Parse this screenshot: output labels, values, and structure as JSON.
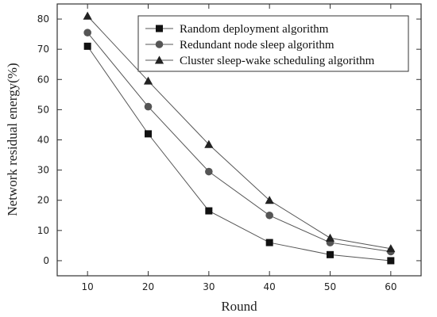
{
  "chart_data": {
    "type": "line",
    "title": "",
    "xlabel": "Round",
    "ylabel": "Network residual energy(%)",
    "x": [
      10,
      20,
      30,
      40,
      50,
      60
    ],
    "xlim": [
      5,
      65
    ],
    "ylim": [
      -5,
      85
    ],
    "xticks": [
      10,
      20,
      30,
      40,
      50,
      60
    ],
    "yticks": [
      0,
      10,
      20,
      30,
      40,
      50,
      60,
      70,
      80
    ],
    "grid": false,
    "legend_position": "top-right",
    "series": [
      {
        "name": "Random deployment algorithm",
        "marker": "square",
        "values": [
          71,
          42,
          16.5,
          6,
          2,
          0
        ]
      },
      {
        "name": "Redundant node sleep algorithm",
        "marker": "circle",
        "values": [
          75.5,
          51,
          29.5,
          15,
          6,
          3
        ]
      },
      {
        "name": "Cluster sleep-wake scheduling algorithm",
        "marker": "triangle",
        "values": [
          81,
          59.5,
          38.5,
          20,
          7.5,
          4
        ]
      }
    ],
    "colors": {
      "line": "#555555",
      "markers": [
        "#111111",
        "#555555",
        "#222222"
      ]
    }
  }
}
